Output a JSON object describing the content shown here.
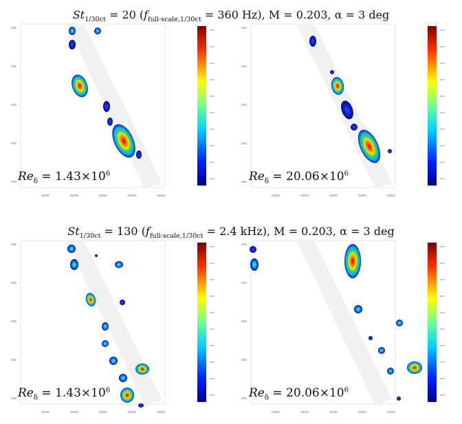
{
  "sections": [
    {
      "title": [
        "St",
        "1/30ct",
        " = 20 (",
        "f",
        "full-scale,1/30ct",
        " = 360 Hz), M = 0.203, α = 3 deg"
      ],
      "panels": [
        {
          "label": [
            "Re",
            "δ",
            " = 1.43×10",
            "6"
          ]
        },
        {
          "label": [
            "Re",
            "δ",
            " = 20.06×10",
            "6"
          ]
        }
      ]
    },
    {
      "title": [
        "St",
        "1/30ct",
        " = 130 (",
        "f",
        "full-scale,1/30ct",
        " = 2.4 kHz), M = 0.203, α = 3 deg"
      ],
      "panels": [
        {
          "label": [
            "Re",
            "δ",
            " = 1.43×10",
            "6"
          ]
        },
        {
          "label": [
            "Re",
            "δ",
            " = 20.06×10",
            "6"
          ]
        }
      ]
    }
  ]
}
